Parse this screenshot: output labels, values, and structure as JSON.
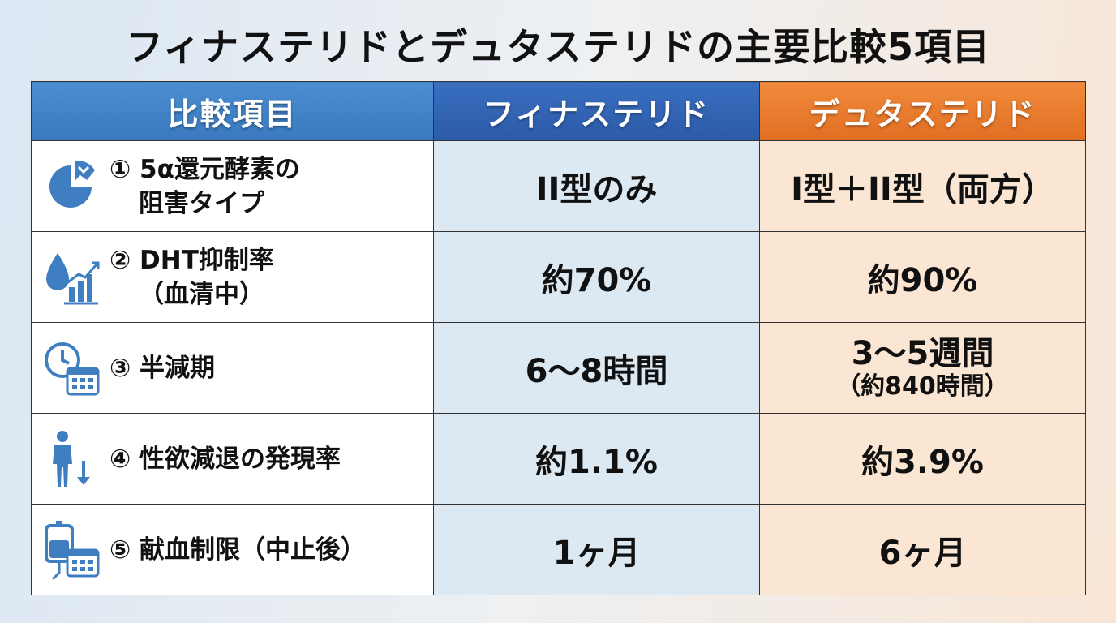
{
  "title": "フィナステリドとデュタステリドの主要比較5項目",
  "header": {
    "item": "比較項目",
    "finasteride": "フィナステリド",
    "dutasteride": "デュタステリド"
  },
  "colors": {
    "header_item": "#4b8ed2",
    "header_finasteride": "#2b5aa8",
    "header_dutasteride": "#e16f22",
    "icon_blue": "#3f7fc1"
  },
  "rows": [
    {
      "icon": "pie-chart-icon",
      "label_line1": "① 5α還元酵素の",
      "label_line2": "阻害タイプ",
      "finasteride": "II型のみ",
      "dutasteride": "I型＋II型（両方）",
      "dutasteride_sub": ""
    },
    {
      "icon": "drop-bar-chart-icon",
      "label_line1": "② DHT抑制率",
      "label_line2": "（血清中）",
      "finasteride": "約70%",
      "dutasteride": "約90%",
      "dutasteride_sub": ""
    },
    {
      "icon": "clock-calendar-icon",
      "label_line1": "③ 半減期",
      "label_line2": "",
      "finasteride": "6～8時間",
      "dutasteride": "3～5週間",
      "dutasteride_sub": "（約840時間）"
    },
    {
      "icon": "person-down-arrow-icon",
      "label_line1": "④ 性欲減退の発現率",
      "label_line2": "",
      "finasteride": "約1.1%",
      "dutasteride": "約3.9%",
      "dutasteride_sub": ""
    },
    {
      "icon": "blood-bag-calendar-icon",
      "label_line1": "⑤ 献血制限（中止後）",
      "label_line2": "",
      "finasteride": "1ヶ月",
      "dutasteride": "6ヶ月",
      "dutasteride_sub": ""
    }
  ]
}
